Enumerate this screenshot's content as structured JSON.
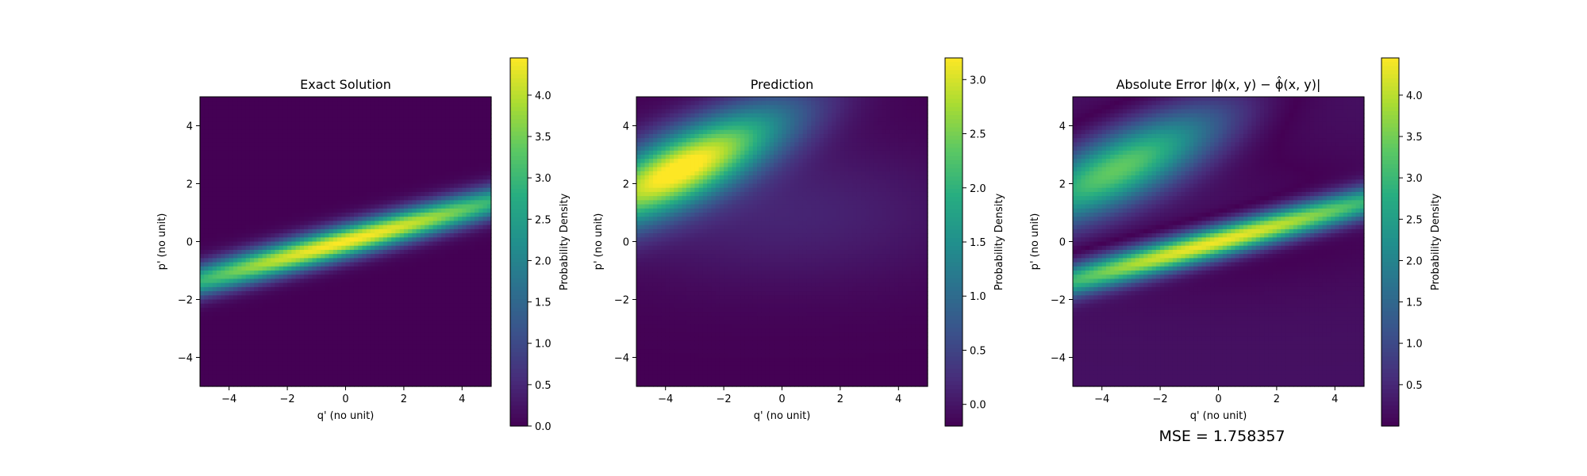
{
  "chart_data": [
    {
      "type": "heatmap",
      "title": "Exact Solution",
      "xlabel": "q' (no unit)",
      "ylabel": "p' (no unit)",
      "xlim": [
        -5,
        5
      ],
      "ylim": [
        -5,
        5
      ],
      "xticks": [
        "−4",
        "−2",
        "0",
        "2",
        "4"
      ],
      "yticks": [
        "−4",
        "−2",
        "0",
        "2",
        "4"
      ],
      "colorbar": {
        "label": "Probability Density",
        "min": 0.0,
        "max": 4.45,
        "ticks": [
          "0.0",
          "0.5",
          "1.0",
          "1.5",
          "2.0",
          "2.5",
          "3.0",
          "3.5",
          "4.0"
        ]
      },
      "colormap": "viridis",
      "field": {
        "kind": "gaussian_line",
        "peak": 4.45,
        "center": [
          0,
          0
        ],
        "slope": 0.27,
        "width": 0.4
      }
    },
    {
      "type": "heatmap",
      "title": "Prediction",
      "xlabel": "q' (no unit)",
      "ylabel": "p' (no unit)",
      "xlim": [
        -5,
        5
      ],
      "ylim": [
        -5,
        5
      ],
      "xticks": [
        "−4",
        "−2",
        "0",
        "2",
        "4"
      ],
      "yticks": [
        "−4",
        "−2",
        "0",
        "2",
        "4"
      ],
      "colorbar": {
        "label": "Probability Density",
        "min": -0.2,
        "max": 3.2,
        "ticks": [
          "0.0",
          "0.5",
          "1.0",
          "1.5",
          "2.0",
          "2.5",
          "3.0"
        ]
      },
      "colormap": "viridis",
      "field": {
        "kind": "blob",
        "peak": 3.2,
        "center": [
          -3.5,
          2.5
        ],
        "floor": -0.2
      }
    },
    {
      "type": "heatmap",
      "title": "Absolute Error |ϕ(x, y) − ϕ̂(x, y)|",
      "xlabel": "q' (no unit)",
      "ylabel": "p' (no unit)",
      "xlim": [
        -5,
        5
      ],
      "ylim": [
        -5,
        5
      ],
      "xticks": [
        "−4",
        "−2",
        "0",
        "2",
        "4"
      ],
      "yticks": [
        "−4",
        "−2",
        "0",
        "2",
        "4"
      ],
      "colorbar": {
        "label": "Probability Density",
        "min": 0.0,
        "max": 4.45,
        "ticks": [
          "0.5",
          "1.0",
          "1.5",
          "2.0",
          "2.5",
          "3.0",
          "3.5",
          "4.0"
        ]
      },
      "colormap": "viridis",
      "field": {
        "kind": "abs_error"
      }
    }
  ],
  "mse_text": "MSE = 1.758357"
}
